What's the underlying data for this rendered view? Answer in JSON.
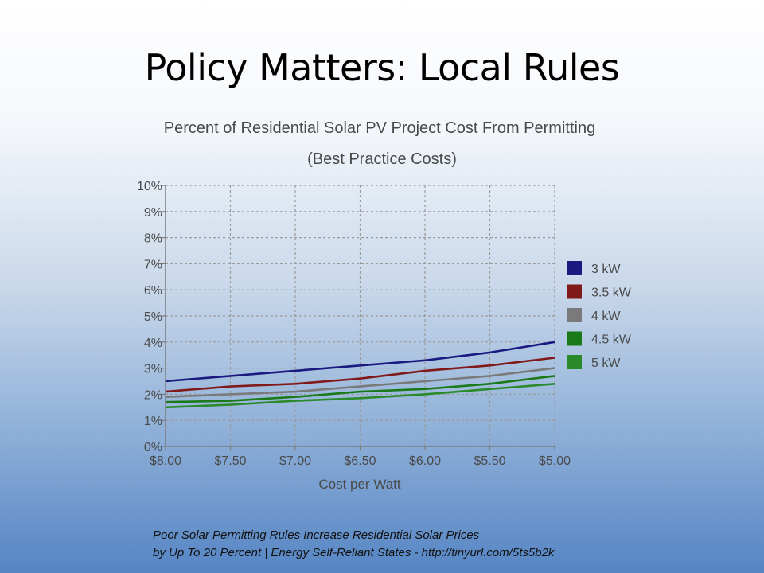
{
  "slide": {
    "title": "Policy Matters: Local Rules",
    "caption_line1": "Poor Solar Permitting Rules Increase Residential Solar Prices",
    "caption_line2": "by Up To 20 Percent | Energy Self-Reliant States - http://tinyurl.com/5ts5b2k"
  },
  "chart_data": {
    "type": "line",
    "title": "Percent of Residential Solar PV Project Cost From Permitting",
    "subtitle": "(Best Practice Costs)",
    "xlabel": "Cost per Watt",
    "ylabel": "",
    "x": [
      8.0,
      7.5,
      7.0,
      6.5,
      6.0,
      5.5,
      5.0
    ],
    "x_tick_labels": [
      "$8.00",
      "$7.50",
      "$7.00",
      "$6.50",
      "$6.00",
      "$5.50",
      "$5.00"
    ],
    "y_tick_labels": [
      "0%",
      "1%",
      "2%",
      "3%",
      "4%",
      "5%",
      "6%",
      "7%",
      "8%",
      "9%",
      "10%"
    ],
    "ylim": [
      0,
      10
    ],
    "x_reversed": true,
    "grid": true,
    "legend_position": "right",
    "series": [
      {
        "name": "3 kW",
        "color": "#1a1a80",
        "values": [
          2.5,
          2.7,
          2.9,
          3.1,
          3.3,
          3.6,
          4.0
        ]
      },
      {
        "name": "3.5 kW",
        "color": "#801a1a",
        "values": [
          2.1,
          2.3,
          2.4,
          2.6,
          2.9,
          3.1,
          3.4
        ]
      },
      {
        "name": "4 kW",
        "color": "#7a7a7a",
        "values": [
          1.9,
          2.0,
          2.1,
          2.3,
          2.5,
          2.7,
          3.0
        ]
      },
      {
        "name": "4.5 kW",
        "color": "#1a7a1a",
        "values": [
          1.7,
          1.75,
          1.9,
          2.1,
          2.2,
          2.4,
          2.7
        ]
      },
      {
        "name": "5 kW",
        "color": "#2a8a2a",
        "values": [
          1.5,
          1.6,
          1.75,
          1.85,
          2.0,
          2.2,
          2.4
        ]
      }
    ]
  }
}
